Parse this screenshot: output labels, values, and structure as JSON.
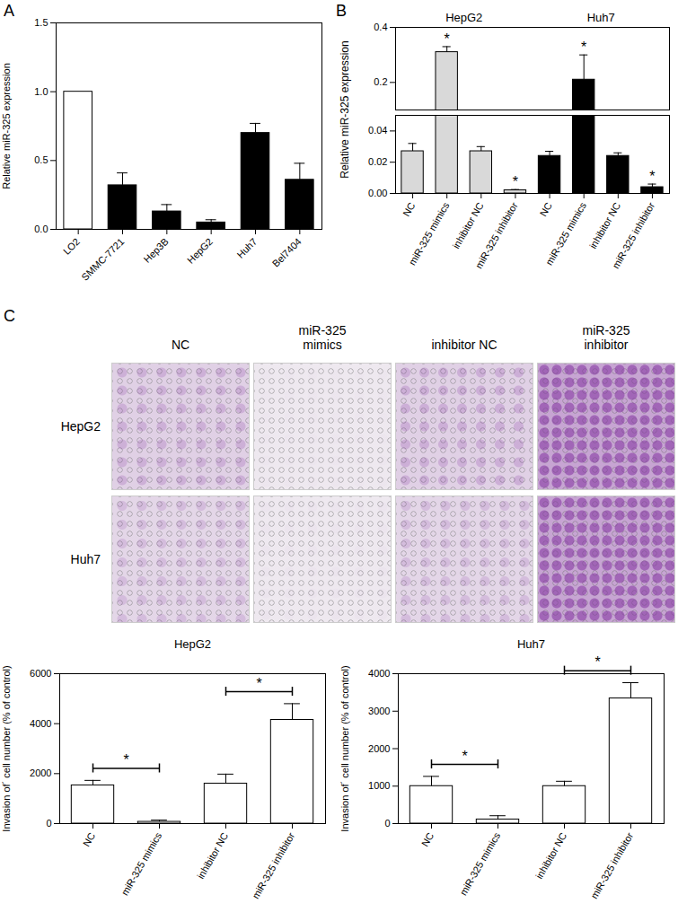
{
  "chart_data": [
    {
      "type": "bar",
      "panel": "A",
      "categories": [
        "LO2",
        "SMMC-7721",
        "Hep3B",
        "HepG2",
        "Huh7",
        "Bel7404"
      ],
      "values": [
        1.0,
        0.32,
        0.13,
        0.05,
        0.7,
        0.36
      ],
      "errors": [
        0,
        0.09,
        0.05,
        0.02,
        0.07,
        0.12
      ],
      "colors": [
        "#ffffff",
        "#000000",
        "#000000",
        "#000000",
        "#000000",
        "#000000"
      ],
      "y_label": "Relative miR-325 expression",
      "ylim": [
        0,
        1.5
      ],
      "yticks": [
        {
          "value": 0,
          "label": "0.0"
        },
        {
          "value": 0.5,
          "label": "0.5"
        },
        {
          "value": 1,
          "label": "1.0"
        },
        {
          "value": 1.5,
          "label": "1.5"
        }
      ]
    },
    {
      "type": "bar",
      "panel": "B",
      "categories": [
        "NC",
        "miR-325 mimics",
        "inhibitor NC",
        "miR-325 inhibitor",
        "NC",
        "miR-325 mimics",
        "inhibitor NC",
        "miR-325 inhibitor"
      ],
      "values": [
        0.027,
        0.31,
        0.027,
        0.002,
        0.024,
        0.21,
        0.024,
        0.004
      ],
      "errors": [
        0.005,
        0.02,
        0.003,
        0.0005,
        0.003,
        0.09,
        0.002,
        0.002
      ],
      "colors": [
        "#d9d9d9",
        "#d9d9d9",
        "#d9d9d9",
        "#d9d9d9",
        "#000000",
        "#000000",
        "#000000",
        "#000000"
      ],
      "groups": [
        {
          "label": "HepG2",
          "span": [
            0,
            3
          ]
        },
        {
          "label": "Huh7",
          "span": [
            4,
            7
          ]
        }
      ],
      "significance": [
        null,
        "*",
        null,
        "*",
        null,
        "*",
        null,
        "*"
      ],
      "y_label": "Relative miR-325 expression",
      "ylim": [
        0,
        0.4
      ],
      "axis_break": [
        0.05,
        0.1
      ],
      "yticks": [
        {
          "value": 0,
          "label": "0.00"
        },
        {
          "value": 0.02,
          "label": "0.02"
        },
        {
          "value": 0.04,
          "label": "0.04"
        },
        0.2,
        0.4
      ]
    },
    {
      "type": "images",
      "panel": "C",
      "columns": [
        "NC",
        "miR-325 mimics",
        "inhibitor NC",
        "miR-325 inhibitor"
      ],
      "rows": [
        "HepG2",
        "Huh7"
      ]
    },
    {
      "type": "bar",
      "title": "HepG2",
      "categories": [
        "NC",
        "miR-325 mimics",
        "inhibitor NC",
        "miR-325 inhibitor"
      ],
      "values": [
        1530,
        70,
        1600,
        4150
      ],
      "errors": [
        200,
        70,
        380,
        650
      ],
      "color": "#ffffff",
      "comparisons": [
        {
          "pair": [
            0,
            1
          ],
          "label": "*"
        },
        {
          "pair": [
            2,
            3
          ],
          "label": "*"
        }
      ],
      "y_label": "Invasion of´ cell number (% of control)",
      "ylim": [
        0,
        6000
      ],
      "yticks": [
        0,
        2000,
        4000,
        6000
      ]
    },
    {
      "type": "bar",
      "title": "Huh7",
      "categories": [
        "NC",
        "miR-325 mimics",
        "inhibitor NC",
        "miR-325 inhibitor"
      ],
      "values": [
        1000,
        110,
        1000,
        3340
      ],
      "errors": [
        260,
        100,
        130,
        420
      ],
      "color": "#ffffff",
      "comparisons": [
        {
          "pair": [
            0,
            1
          ],
          "label": "*"
        },
        {
          "pair": [
            2,
            3
          ],
          "label": "*"
        }
      ],
      "y_label": "Invasion of´ cell number (% of control)",
      "ylim": [
        0,
        4000
      ],
      "yticks": [
        0,
        1000,
        2000,
        3000,
        4000
      ]
    }
  ]
}
